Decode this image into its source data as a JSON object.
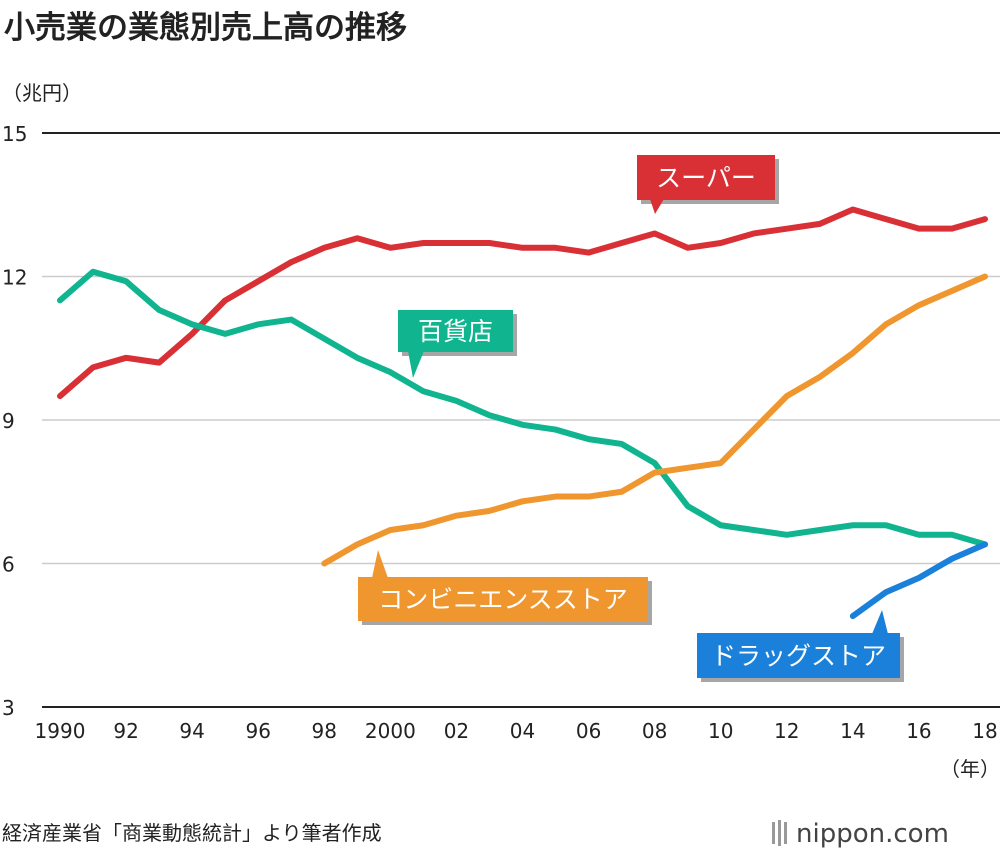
{
  "chart_data": {
    "type": "line",
    "title": "小売業の業態別売上高の推移",
    "ylabel": "（兆円）",
    "xlabel": "（年）",
    "ylim": [
      3,
      15
    ],
    "yticks": [
      3,
      6,
      9,
      12,
      15
    ],
    "xlim": [
      1990,
      2018
    ],
    "xticks": [
      {
        "v": 1990,
        "l": "1990"
      },
      {
        "v": 1992,
        "l": "92"
      },
      {
        "v": 1994,
        "l": "94"
      },
      {
        "v": 1996,
        "l": "96"
      },
      {
        "v": 1998,
        "l": "98"
      },
      {
        "v": 2000,
        "l": "2000"
      },
      {
        "v": 2002,
        "l": "02"
      },
      {
        "v": 2004,
        "l": "04"
      },
      {
        "v": 2006,
        "l": "06"
      },
      {
        "v": 2008,
        "l": "08"
      },
      {
        "v": 2010,
        "l": "10"
      },
      {
        "v": 2012,
        "l": "12"
      },
      {
        "v": 2014,
        "l": "14"
      },
      {
        "v": 2016,
        "l": "16"
      },
      {
        "v": 2018,
        "l": "18"
      }
    ],
    "grid": true,
    "series": [
      {
        "name": "スーパー",
        "color": "#d93036",
        "start": 1990,
        "values": [
          9.5,
          10.1,
          10.3,
          10.2,
          10.8,
          11.5,
          11.9,
          12.3,
          12.6,
          12.8,
          12.6,
          12.7,
          12.7,
          12.7,
          12.6,
          12.6,
          12.5,
          12.7,
          12.9,
          12.6,
          12.7,
          12.9,
          13.0,
          13.1,
          13.4,
          13.2,
          13.0,
          13.0,
          13.2
        ]
      },
      {
        "name": "百貨店",
        "color": "#10b48f",
        "start": 1990,
        "values": [
          11.5,
          12.1,
          11.9,
          11.3,
          11.0,
          10.8,
          11.0,
          11.1,
          10.7,
          10.3,
          10.0,
          9.6,
          9.4,
          9.1,
          8.9,
          8.8,
          8.6,
          8.5,
          8.1,
          7.2,
          6.8,
          6.7,
          6.6,
          6.7,
          6.8,
          6.8,
          6.6,
          6.6,
          6.4
        ]
      },
      {
        "name": "コンビニエンスストア",
        "color": "#f0962e",
        "start": 1998,
        "values": [
          6.0,
          6.4,
          6.7,
          6.8,
          7.0,
          7.1,
          7.3,
          7.4,
          7.4,
          7.5,
          7.9,
          8.0,
          8.1,
          8.8,
          9.5,
          9.9,
          10.4,
          11.0,
          11.4,
          11.7,
          12.0
        ]
      },
      {
        "name": "ドラッグストア",
        "color": "#1a80d9",
        "start": 2014,
        "values": [
          4.9,
          5.4,
          5.7,
          6.1,
          6.4
        ]
      }
    ]
  },
  "footer": {
    "source": "経済産業省「商業動態統計」より筆者作成",
    "logo": "nippon.com"
  }
}
